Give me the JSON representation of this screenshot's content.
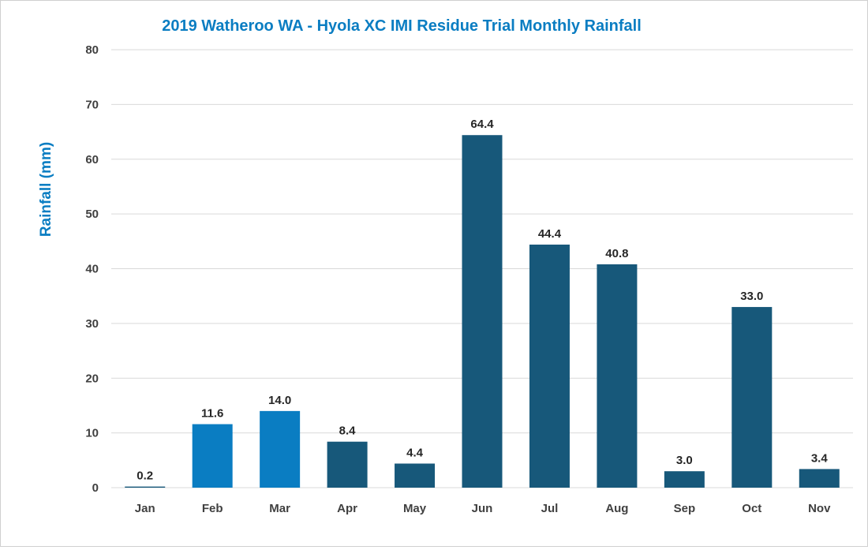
{
  "chart_data": {
    "type": "bar",
    "title": "2019 Watheroo WA - Hyola XC IMI Residue Trial Monthly Rainfall",
    "xlabel": "",
    "ylabel": "Rainfall (mm)",
    "ylim": [
      0,
      80
    ],
    "yticks": [
      "0",
      "10",
      "20",
      "30",
      "40",
      "50",
      "60",
      "70",
      "80"
    ],
    "grid": true,
    "legend": "none",
    "categories": [
      "Jan",
      "Feb",
      "Mar",
      "Apr",
      "May",
      "Jun",
      "Jul",
      "Aug",
      "Sep",
      "Oct",
      "Nov"
    ],
    "values": [
      0.2,
      11.6,
      14.0,
      8.4,
      4.4,
      64.4,
      44.4,
      40.8,
      3.0,
      33.0,
      3.4
    ],
    "data_labels": [
      "0.2",
      "11.6",
      "14.0",
      "8.4",
      "4.4",
      "64.4",
      "44.4",
      "40.8",
      "3.0",
      "33.0",
      "3.4"
    ],
    "bar_colors": [
      "#17587a",
      "#0a7dc2",
      "#0a7dc2",
      "#17587a",
      "#17587a",
      "#17587a",
      "#17587a",
      "#17587a",
      "#17587a",
      "#17587a",
      "#17587a"
    ],
    "title_color": "#0a7dc2",
    "ylabel_color": "#0a7dc2"
  }
}
